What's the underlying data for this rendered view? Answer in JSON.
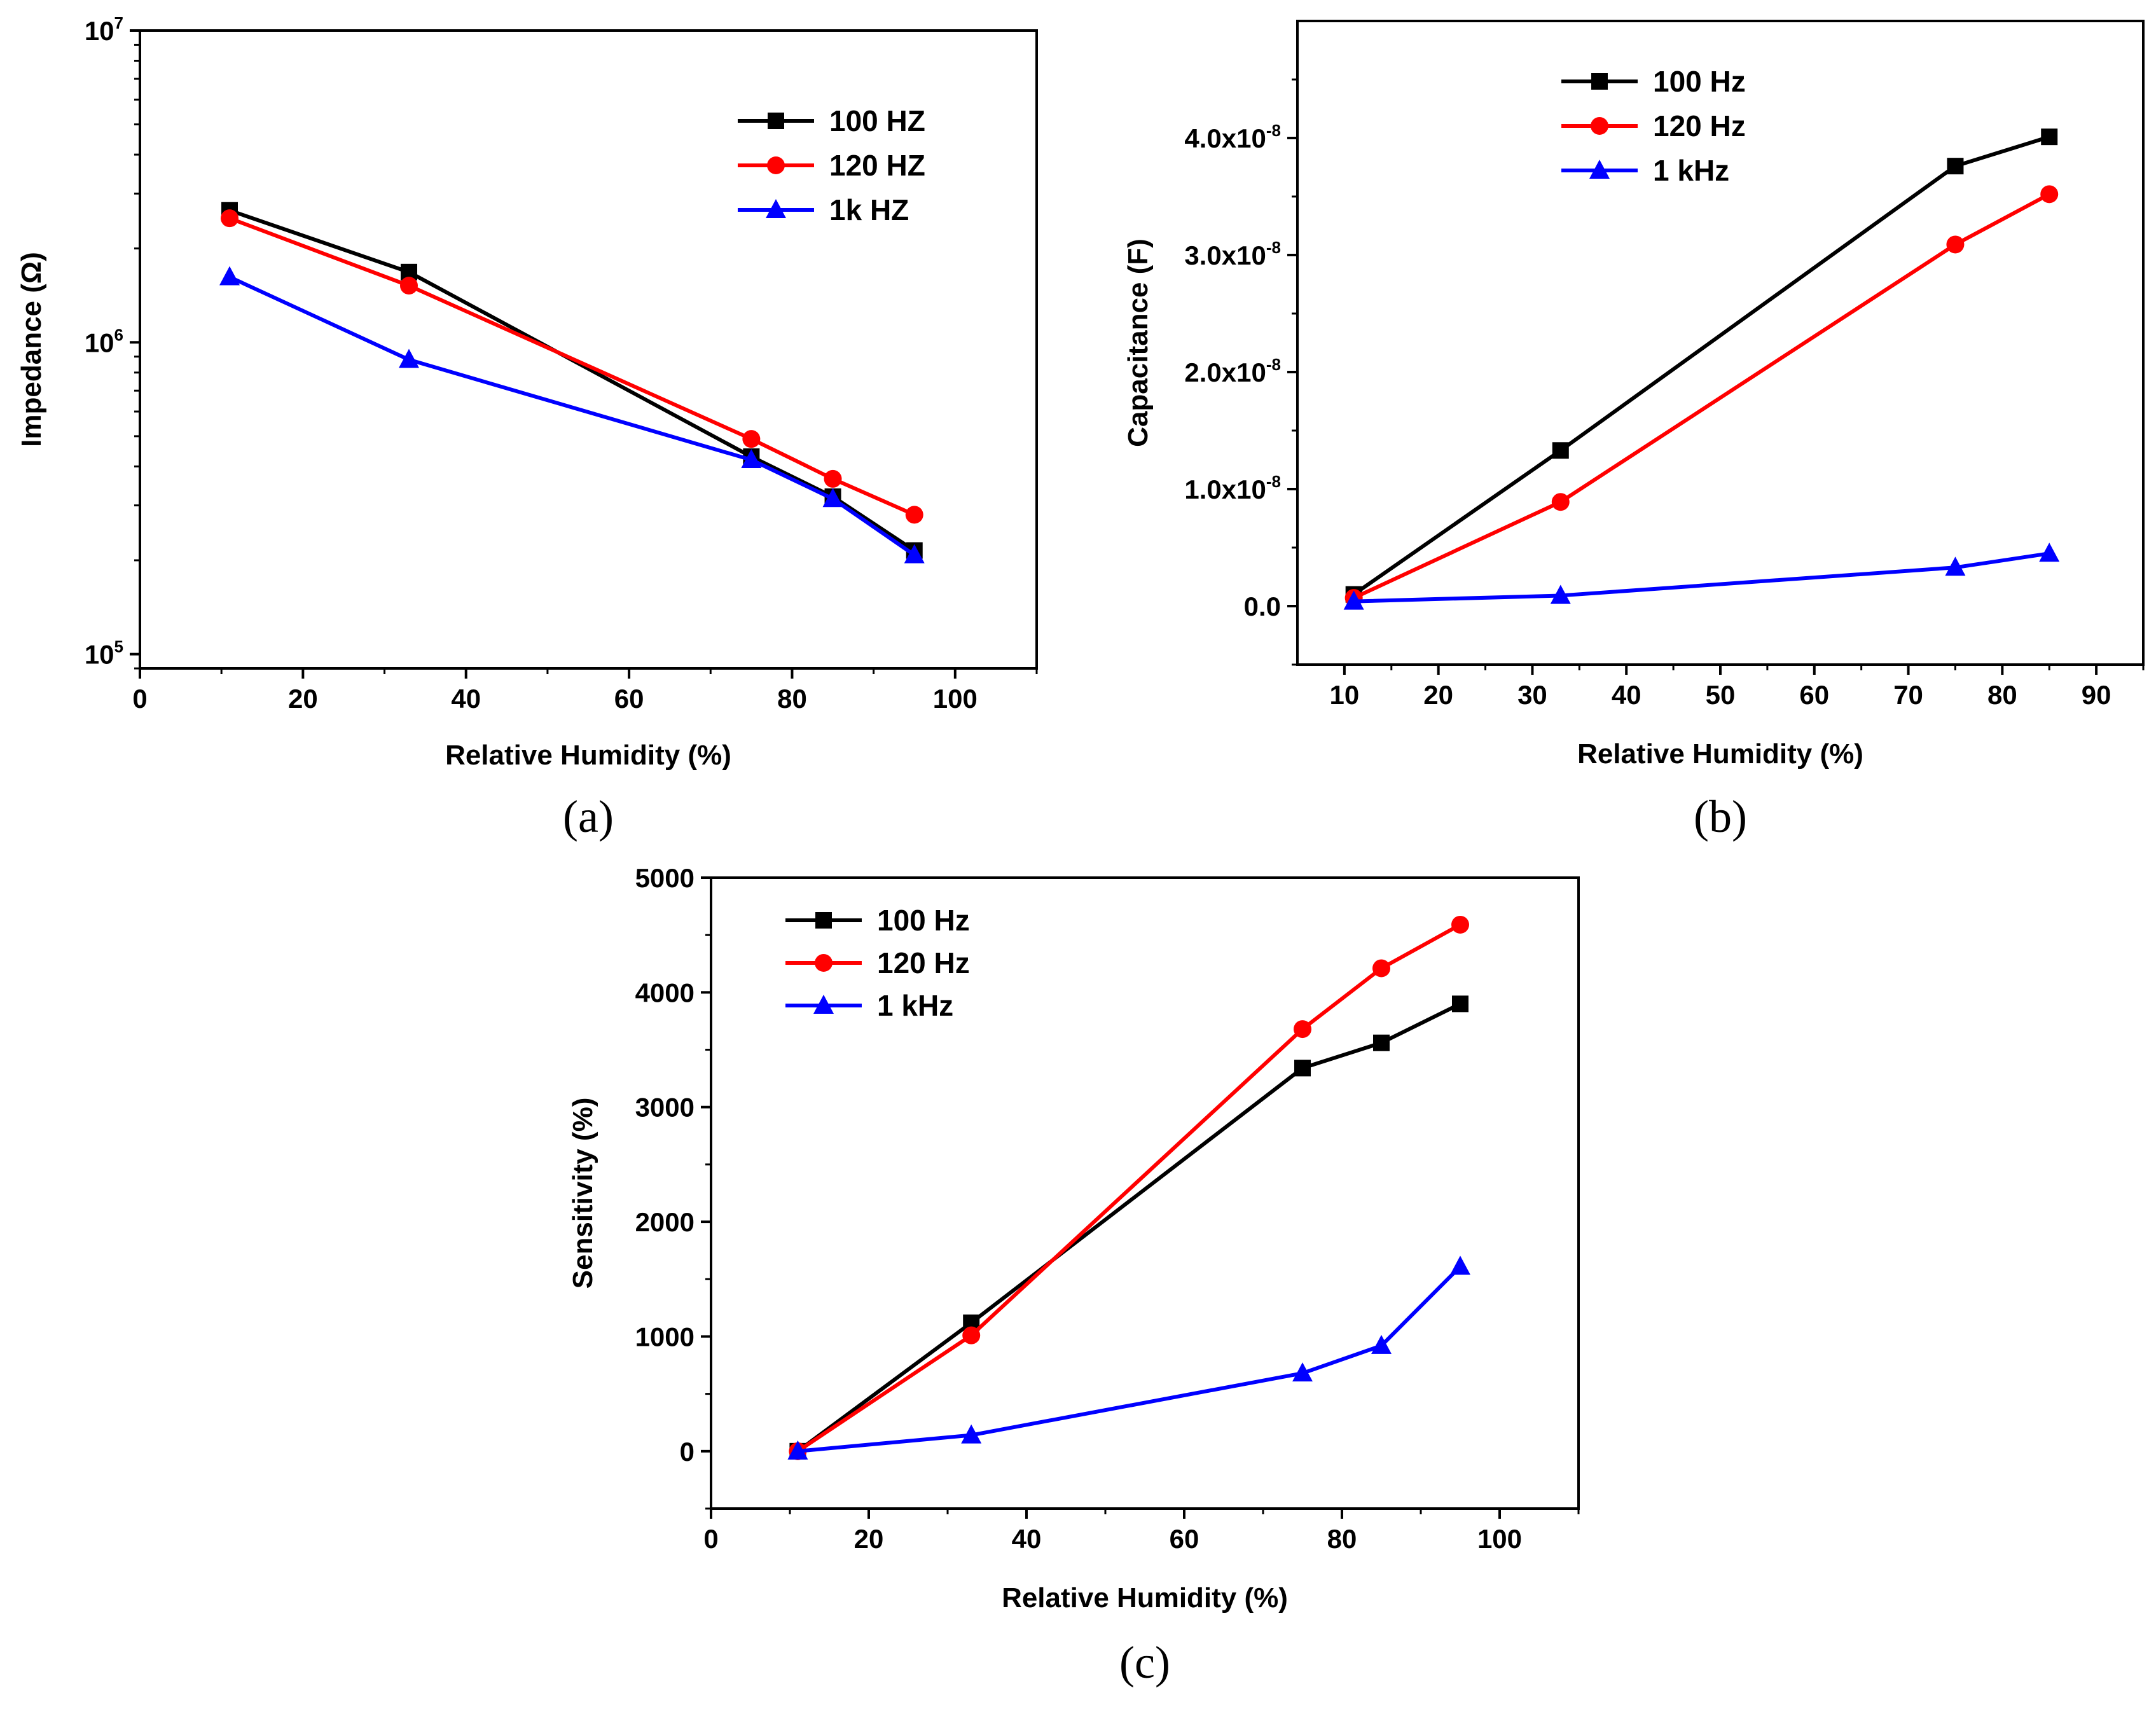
{
  "chart_data": [
    {
      "id": "a",
      "panel_label": "(a)",
      "type": "line",
      "xlabel": "Relative Humidity (%)",
      "ylabel": "Impedance (Ω)",
      "xlim": [
        0,
        110
      ],
      "ylim": [
        90000,
        10000000
      ],
      "yscale": "log",
      "x_ticks": [
        0,
        20,
        40,
        60,
        80,
        100
      ],
      "x_tick_labels": [
        "0",
        "20",
        "40",
        "60",
        "80",
        "100"
      ],
      "y_ticks": [
        100000,
        1000000,
        10000000
      ],
      "y_tick_bases": [
        "10",
        "10",
        "10"
      ],
      "y_tick_exponents": [
        "5",
        "6",
        "7"
      ],
      "legend_position": "top-right",
      "series": [
        {
          "name": "100 HZ",
          "color": "#000000",
          "marker": "square",
          "x": [
            11,
            33,
            75,
            85,
            95
          ],
          "y": [
            2650000,
            1680000,
            430000,
            320000,
            215000
          ]
        },
        {
          "name": "120 HZ",
          "color": "#ff0000",
          "marker": "circle",
          "x": [
            11,
            33,
            75,
            85,
            95
          ],
          "y": [
            2500000,
            1520000,
            490000,
            365000,
            280000
          ]
        },
        {
          "name": "1k HZ",
          "color": "#0000ff",
          "marker": "triangle",
          "x": [
            11,
            33,
            75,
            85,
            95
          ],
          "y": [
            1620000,
            880000,
            420000,
            315000,
            208000
          ]
        }
      ]
    },
    {
      "id": "b",
      "panel_label": "(b)",
      "type": "line",
      "xlabel": "Relative Humidity (%)",
      "ylabel": "Capacitance (F)",
      "xlim": [
        5,
        95
      ],
      "ylim": [
        -5e-09,
        5e-08
      ],
      "yscale": "linear",
      "x_ticks": [
        10,
        20,
        30,
        40,
        50,
        60,
        70,
        80,
        90
      ],
      "x_tick_labels": [
        "10",
        "20",
        "30",
        "40",
        "50",
        "60",
        "70",
        "80",
        "90"
      ],
      "y_ticks": [
        0,
        1e-08,
        2e-08,
        3e-08,
        4e-08
      ],
      "y_tick_bases": [
        "0.0",
        "1.0x10",
        "2.0x10",
        "3.0x10",
        "4.0x10"
      ],
      "y_tick_exponents": [
        "",
        "-8",
        "-8",
        "-8",
        "-8"
      ],
      "legend_position": "top-left",
      "series": [
        {
          "name": "100 Hz",
          "color": "#000000",
          "marker": "square",
          "x": [
            11,
            33,
            75,
            85
          ],
          "y": [
            1e-09,
            1.33e-08,
            3.76e-08,
            4.01e-08
          ]
        },
        {
          "name": "120 Hz",
          "color": "#ff0000",
          "marker": "circle",
          "x": [
            11,
            33,
            75,
            85
          ],
          "y": [
            7e-10,
            8.9e-09,
            3.09e-08,
            3.52e-08
          ]
        },
        {
          "name": "1 kHz",
          "color": "#0000ff",
          "marker": "triangle",
          "x": [
            11,
            33,
            75,
            85
          ],
          "y": [
            4e-10,
            9e-10,
            3.3e-09,
            4.5e-09
          ]
        }
      ]
    },
    {
      "id": "c",
      "panel_label": "(c)",
      "type": "line",
      "xlabel": "Relative Humidity (%)",
      "ylabel": "Sensitivity (%)",
      "xlim": [
        0,
        110
      ],
      "ylim": [
        -500,
        5000
      ],
      "yscale": "linear",
      "x_ticks": [
        0,
        20,
        40,
        60,
        80,
        100
      ],
      "x_tick_labels": [
        "0",
        "20",
        "40",
        "60",
        "80",
        "100"
      ],
      "y_ticks": [
        0,
        1000,
        2000,
        3000,
        4000,
        5000
      ],
      "y_tick_bases": [
        "0",
        "1000",
        "2000",
        "3000",
        "4000",
        "5000"
      ],
      "y_tick_exponents": [
        "",
        "",
        "",
        "",
        "",
        ""
      ],
      "legend_position": "top-left",
      "series": [
        {
          "name": "100 Hz",
          "color": "#000000",
          "marker": "square",
          "x": [
            11,
            33,
            75,
            85,
            95
          ],
          "y": [
            0,
            1120,
            3340,
            3560,
            3900
          ]
        },
        {
          "name": "120 Hz",
          "color": "#ff0000",
          "marker": "circle",
          "x": [
            11,
            33,
            75,
            85,
            95
          ],
          "y": [
            0,
            1010,
            3680,
            4210,
            4590
          ]
        },
        {
          "name": "1 kHz",
          "color": "#0000ff",
          "marker": "triangle",
          "x": [
            11,
            33,
            75,
            85,
            95
          ],
          "y": [
            0,
            140,
            680,
            920,
            1610
          ]
        }
      ]
    }
  ]
}
